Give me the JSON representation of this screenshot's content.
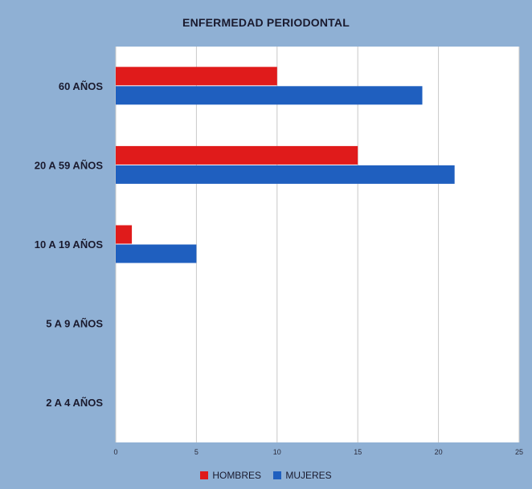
{
  "chart_data": {
    "type": "bar",
    "orientation": "horizontal",
    "title": "ENFERMEDAD PERIODONTAL",
    "categories": [
      "60 AÑOS",
      "20 A 59 AÑOS",
      "10 A 19 AÑOS",
      "5 A 9 AÑOS",
      "2 A 4 AÑOS"
    ],
    "series": [
      {
        "name": "HOMBRES",
        "color": "#e01b1b",
        "values": [
          10,
          15,
          1,
          0,
          0
        ]
      },
      {
        "name": "MUJERES",
        "color": "#1f5fbf",
        "values": [
          19,
          21,
          5,
          0,
          0
        ]
      }
    ],
    "xlim": [
      0,
      25
    ],
    "x_ticks": [
      "0",
      "5",
      "10",
      "15",
      "20",
      "25"
    ],
    "grid": true,
    "legend_position": "bottom"
  }
}
